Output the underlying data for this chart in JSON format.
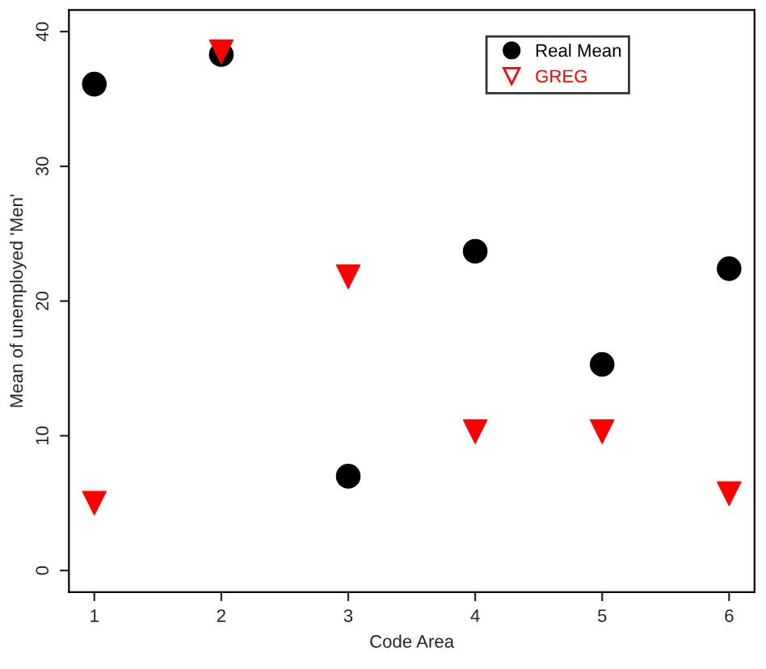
{
  "chart_data": {
    "type": "scatter",
    "xlabel": "Code Area",
    "ylabel": "Mean of unemployed 'Men'",
    "x": [
      1,
      2,
      3,
      4,
      5,
      6
    ],
    "series": [
      {
        "name": "Real Mean",
        "color": "#000000",
        "marker": "circle",
        "values": [
          36.1,
          38.3,
          7.0,
          23.7,
          15.3,
          22.4
        ]
      },
      {
        "name": "GREG",
        "color": "#ff0000",
        "marker": "triangle",
        "values": [
          5.0,
          38.5,
          21.8,
          10.3,
          10.3,
          5.7
        ]
      }
    ],
    "xlim": [
      0.8,
      6.2
    ],
    "ylim": [
      -1.6,
      41.6
    ],
    "xticks": [
      1,
      2,
      3,
      4,
      5,
      6
    ],
    "yticks": [
      0,
      10,
      20,
      30,
      40
    ],
    "grid": false,
    "legend": "top right"
  }
}
